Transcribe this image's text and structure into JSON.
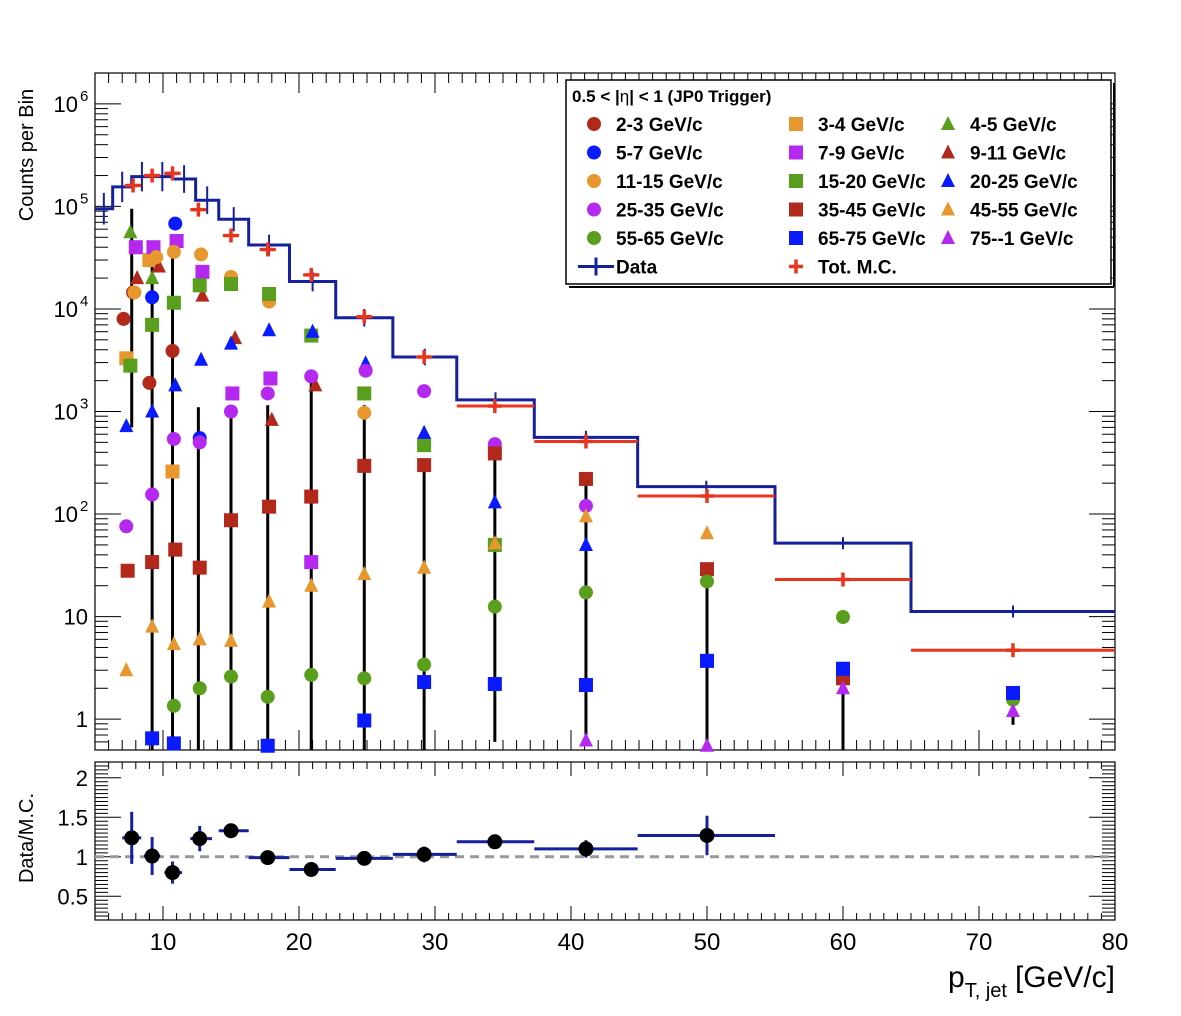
{
  "chart_data": [
    {
      "type": "scatter",
      "title": "",
      "xlabel": "",
      "ylabel": "Counts per Bin",
      "yscale": "log",
      "xlim": [
        5,
        80
      ],
      "ylim": [
        0.5,
        2000000
      ],
      "y_tick_labels": [
        "1",
        "10",
        "10",
        "10",
        "10",
        "10",
        "10"
      ],
      "y_tick_exponents": [
        "",
        "",
        "2",
        "3",
        "4",
        "5",
        "6"
      ],
      "legend": {
        "placement": "top-right",
        "title_pre": "0.5 < |",
        "title_eta": "η",
        "title_post": "| < 1 (JP0 Trigger)",
        "entries": [
          {
            "label": "2-3 GeV/c",
            "color": "#b2281a",
            "marker": "circle"
          },
          {
            "label": "3-4 GeV/c",
            "color": "#e8962e",
            "marker": "square"
          },
          {
            "label": "4-5 GeV/c",
            "color": "#5a9e1e",
            "marker": "triangle"
          },
          {
            "label": "5-7 GeV/c",
            "color": "#0a1aff",
            "marker": "circle"
          },
          {
            "label": "7-9 GeV/c",
            "color": "#b428ef",
            "marker": "square"
          },
          {
            "label": "9-11 GeV/c",
            "color": "#b2281a",
            "marker": "triangle"
          },
          {
            "label": "11-15 GeV/c",
            "color": "#e8962e",
            "marker": "circle"
          },
          {
            "label": "15-20 GeV/c",
            "color": "#5a9e1e",
            "marker": "square"
          },
          {
            "label": "20-25 GeV/c",
            "color": "#0a1aff",
            "marker": "triangle"
          },
          {
            "label": "25-35 GeV/c",
            "color": "#b428ef",
            "marker": "circle"
          },
          {
            "label": "35-45 GeV/c",
            "color": "#b2281a",
            "marker": "square"
          },
          {
            "label": "45-55 GeV/c",
            "color": "#e8962e",
            "marker": "triangle"
          },
          {
            "label": "55-65 GeV/c",
            "color": "#5a9e1e",
            "marker": "circle"
          },
          {
            "label": "65-75 GeV/c",
            "color": "#0a1aff",
            "marker": "square"
          },
          {
            "label": "75--1 GeV/c",
            "color": "#b428ef",
            "marker": "triangle"
          },
          {
            "label": "Data",
            "color": "#14209c",
            "marker": "hline"
          },
          {
            "label": "Tot. M.C.",
            "color": "#e8361e",
            "marker": "cross"
          }
        ]
      },
      "data_histogram": {
        "name": "Data",
        "color": "#14209c",
        "bins": [
          {
            "lo": 5.0,
            "hi": 6.3,
            "y": 95000
          },
          {
            "lo": 6.3,
            "hi": 7.7,
            "y": 155000
          },
          {
            "lo": 7.7,
            "hi": 9.2,
            "y": 195000
          },
          {
            "lo": 9.2,
            "hi": 10.7,
            "y": 195000
          },
          {
            "lo": 10.7,
            "hi": 12.4,
            "y": 185000
          },
          {
            "lo": 12.4,
            "hi": 14.1,
            "y": 115000
          },
          {
            "lo": 14.1,
            "hi": 16.3,
            "y": 75000
          },
          {
            "lo": 16.3,
            "hi": 19.3,
            "y": 42000
          },
          {
            "lo": 19.3,
            "hi": 22.7,
            "y": 18500
          },
          {
            "lo": 22.7,
            "hi": 26.9,
            "y": 8200
          },
          {
            "lo": 26.9,
            "hi": 31.6,
            "y": 3400
          },
          {
            "lo": 31.6,
            "hi": 37.3,
            "y": 1300
          },
          {
            "lo": 37.3,
            "hi": 44.9,
            "y": 560
          },
          {
            "lo": 44.9,
            "hi": 55.0,
            "y": 185
          },
          {
            "lo": 55.0,
            "hi": 65.0,
            "y": 52
          },
          {
            "lo": 65.0,
            "hi": 80.0,
            "y": 11.2
          }
        ]
      },
      "total_mc": {
        "name": "Tot. M.C.",
        "color": "#e8361e",
        "points": [
          {
            "x": 7.8,
            "xlo": 7.2,
            "xhi": 8.4,
            "y": 160000
          },
          {
            "x": 9.2,
            "xlo": 8.6,
            "xhi": 9.8,
            "y": 200000
          },
          {
            "x": 10.7,
            "xlo": 10.1,
            "xhi": 11.3,
            "y": 210000
          },
          {
            "x": 12.6,
            "xlo": 12.0,
            "xhi": 13.2,
            "y": 93000
          },
          {
            "x": 15.0,
            "xlo": 14.4,
            "xhi": 15.6,
            "y": 52000
          },
          {
            "x": 17.7,
            "xlo": 17.1,
            "xhi": 18.3,
            "y": 38000
          },
          {
            "x": 20.9,
            "xlo": 20.3,
            "xhi": 21.5,
            "y": 21500
          },
          {
            "x": 24.8,
            "xlo": 24.2,
            "xhi": 25.4,
            "y": 8400
          },
          {
            "x": 29.2,
            "xlo": 28.6,
            "xhi": 29.8,
            "y": 3400
          },
          {
            "x": 34.4,
            "xlo": 31.6,
            "xhi": 37.3,
            "y": 1130
          },
          {
            "x": 41.1,
            "xlo": 37.3,
            "xhi": 44.9,
            "y": 510
          },
          {
            "x": 50.0,
            "xlo": 44.9,
            "xhi": 55.0,
            "y": 150
          },
          {
            "x": 60.0,
            "xlo": 55.0,
            "xhi": 65.0,
            "y": 23
          },
          {
            "x": 72.5,
            "xlo": 65.0,
            "xhi": 80.0,
            "y": 4.7
          }
        ]
      },
      "series": [
        {
          "name": "2-3 GeV/c",
          "color": "#b2281a",
          "marker": "circle",
          "points": [
            [
              7.1,
              8000
            ],
            [
              7.8,
              14500
            ],
            [
              9.0,
              1900
            ],
            [
              10.7,
              3900
            ]
          ]
        },
        {
          "name": "3-4 GeV/c",
          "color": "#e8962e",
          "marker": "square",
          "points": [
            [
              7.3,
              3300
            ],
            [
              9.0,
              30000
            ],
            [
              10.7,
              260
            ]
          ]
        },
        {
          "name": "4-5 GeV/c",
          "color": "#5a9e1e",
          "marker": "triangle",
          "points": [
            [
              7.6,
              56000
            ],
            [
              9.2,
              20000
            ]
          ]
        },
        {
          "name": "5-7 GeV/c",
          "color": "#0a1aff",
          "marker": "circle",
          "points": [
            [
              9.2,
              13000
            ],
            [
              10.9,
              68000
            ],
            [
              12.7,
              550
            ]
          ]
        },
        {
          "name": "7-9 GeV/c",
          "color": "#b428ef",
          "marker": "square",
          "points": [
            [
              8.0,
              40000
            ],
            [
              9.3,
              40000
            ],
            [
              11.0,
              46000
            ],
            [
              12.9,
              23000
            ],
            [
              15.1,
              1500
            ],
            [
              17.9,
              2100
            ],
            [
              20.9,
              34
            ]
          ]
        },
        {
          "name": "9-11 GeV/c",
          "color": "#b2281a",
          "marker": "triangle",
          "points": [
            [
              8.1,
              20000
            ],
            [
              9.7,
              26000
            ],
            [
              12.9,
              13500
            ],
            [
              15.3,
              5200
            ],
            [
              18.0,
              830
            ],
            [
              21.2,
              1800
            ]
          ]
        },
        {
          "name": "11-15 GeV/c",
          "color": "#e8962e",
          "marker": "circle",
          "points": [
            [
              7.9,
              14500
            ],
            [
              9.5,
              32000
            ],
            [
              10.8,
              36000
            ],
            [
              12.8,
              34000
            ],
            [
              15.0,
              20500
            ],
            [
              17.8,
              11800
            ],
            [
              24.8,
              970
            ]
          ]
        },
        {
          "name": "15-20 GeV/c",
          "color": "#5a9e1e",
          "marker": "square",
          "points": [
            [
              7.6,
              2800
            ],
            [
              9.2,
              7000
            ],
            [
              10.8,
              11500
            ],
            [
              12.7,
              17000
            ],
            [
              15.0,
              17500
            ],
            [
              17.8,
              14000
            ],
            [
              20.9,
              5500
            ],
            [
              24.8,
              1500
            ],
            [
              29.2,
              470
            ],
            [
              34.4,
              50
            ]
          ]
        },
        {
          "name": "20-25 GeV/c",
          "color": "#0a1aff",
          "marker": "triangle",
          "points": [
            [
              7.3,
              720
            ],
            [
              9.2,
              1000
            ],
            [
              10.9,
              1800
            ],
            [
              12.8,
              3200
            ],
            [
              15.0,
              4600
            ],
            [
              17.8,
              6200
            ],
            [
              21.0,
              6000
            ],
            [
              24.9,
              2950
            ],
            [
              29.2,
              620
            ],
            [
              34.4,
              130
            ],
            [
              41.1,
              50
            ]
          ]
        },
        {
          "name": "25-35 GeV/c",
          "color": "#b428ef",
          "marker": "circle",
          "points": [
            [
              7.3,
              76
            ],
            [
              9.2,
              155
            ],
            [
              10.8,
              540
            ],
            [
              12.7,
              500
            ],
            [
              15.0,
              1000
            ],
            [
              17.7,
              1500
            ],
            [
              20.9,
              2200
            ],
            [
              24.9,
              2500
            ],
            [
              29.2,
              1580
            ],
            [
              34.4,
              480
            ],
            [
              41.1,
              120
            ]
          ]
        },
        {
          "name": "35-45 GeV/c",
          "color": "#b2281a",
          "marker": "square",
          "points": [
            [
              7.4,
              28
            ],
            [
              9.2,
              34
            ],
            [
              10.9,
              45
            ],
            [
              12.7,
              30
            ],
            [
              15.0,
              87
            ],
            [
              17.8,
              118
            ],
            [
              20.9,
              148
            ],
            [
              24.8,
              295
            ],
            [
              29.2,
              300
            ],
            [
              34.4,
              390
            ],
            [
              41.1,
              220
            ],
            [
              50.0,
              29
            ],
            [
              60.0,
              2.5
            ]
          ]
        },
        {
          "name": "45-55 GeV/c",
          "color": "#e8962e",
          "marker": "triangle",
          "points": [
            [
              7.3,
              3.0
            ],
            [
              9.2,
              8.0
            ],
            [
              10.8,
              5.4
            ],
            [
              12.7,
              6.0
            ],
            [
              15.0,
              5.8
            ],
            [
              17.8,
              14
            ],
            [
              20.9,
              20
            ],
            [
              24.8,
              26
            ],
            [
              29.2,
              30
            ],
            [
              34.4,
              52
            ],
            [
              41.1,
              95
            ],
            [
              50.0,
              65
            ]
          ]
        },
        {
          "name": "55-65 GeV/c",
          "color": "#5a9e1e",
          "marker": "circle",
          "points": [
            [
              10.8,
              1.35
            ],
            [
              12.7,
              2.0
            ],
            [
              15.0,
              2.6
            ],
            [
              17.7,
              1.65
            ],
            [
              20.9,
              2.7
            ],
            [
              24.8,
              2.5
            ],
            [
              29.2,
              3.4
            ],
            [
              34.4,
              12.5
            ],
            [
              41.1,
              17.2
            ],
            [
              50.0,
              22
            ],
            [
              60.0,
              9.9
            ],
            [
              72.5,
              1.55
            ]
          ]
        },
        {
          "name": "65-75 GeV/c",
          "color": "#0a1aff",
          "marker": "square",
          "points": [
            [
              9.2,
              0.65
            ],
            [
              10.8,
              0.58
            ],
            [
              17.7,
              0.55
            ],
            [
              24.8,
              0.97
            ],
            [
              29.2,
              2.3
            ],
            [
              34.4,
              2.2
            ],
            [
              41.1,
              2.15
            ],
            [
              50.0,
              3.7
            ],
            [
              60.0,
              3.1
            ],
            [
              72.5,
              1.8
            ]
          ]
        },
        {
          "name": "75--1 GeV/c",
          "color": "#b428ef",
          "marker": "triangle",
          "points": [
            [
              41.1,
              0.62
            ],
            [
              50.0,
              0.55
            ],
            [
              60.0,
              2.0
            ],
            [
              72.5,
              1.2
            ]
          ]
        }
      ]
    },
    {
      "type": "scatter",
      "title": "",
      "ylabel": "Data/M.C.",
      "xlabel_main": "p",
      "xlabel_sub": "T, jet",
      "xlabel_unit": "[GeV/c]",
      "xlim": [
        5,
        80
      ],
      "ylim": [
        0.2,
        2.2
      ],
      "reference_line": 1,
      "y_tick_labels": [
        "0.5",
        "1",
        "1.5",
        "2"
      ],
      "x_tick_labels": [
        "10",
        "20",
        "30",
        "40",
        "50",
        "60",
        "70",
        "80"
      ],
      "series": [
        {
          "name": "",
          "color": "#000000",
          "points": [
            {
              "x": 7.7,
              "xlo": 7.0,
              "xhi": 8.4,
              "y": 1.24,
              "err": 0.33
            },
            {
              "x": 9.2,
              "xlo": 8.6,
              "xhi": 9.8,
              "y": 1.01,
              "err": 0.24
            },
            {
              "x": 10.7,
              "xlo": 10.1,
              "xhi": 11.4,
              "y": 0.8,
              "err": 0.14
            },
            {
              "x": 12.7,
              "xlo": 12.0,
              "xhi": 13.6,
              "y": 1.23,
              "err": 0.16
            },
            {
              "x": 15.0,
              "xlo": 14.1,
              "xhi": 16.3,
              "y": 1.33,
              "err": 0.09
            },
            {
              "x": 17.7,
              "xlo": 16.3,
              "xhi": 19.3,
              "y": 0.99,
              "err": 0.03
            },
            {
              "x": 20.9,
              "xlo": 19.3,
              "xhi": 22.7,
              "y": 0.84,
              "err": 0.03
            },
            {
              "x": 24.8,
              "xlo": 22.7,
              "xhi": 26.9,
              "y": 0.98,
              "err": 0.03
            },
            {
              "x": 29.2,
              "xlo": 26.9,
              "xhi": 31.6,
              "y": 1.03,
              "err": 0.1
            },
            {
              "x": 34.4,
              "xlo": 31.6,
              "xhi": 37.3,
              "y": 1.19,
              "err": 0.08
            },
            {
              "x": 41.1,
              "xlo": 37.3,
              "xhi": 44.9,
              "y": 1.1,
              "err": 0.11
            },
            {
              "x": 50.0,
              "xlo": 44.9,
              "xhi": 55.0,
              "y": 1.27,
              "err": 0.25
            }
          ]
        }
      ]
    }
  ]
}
